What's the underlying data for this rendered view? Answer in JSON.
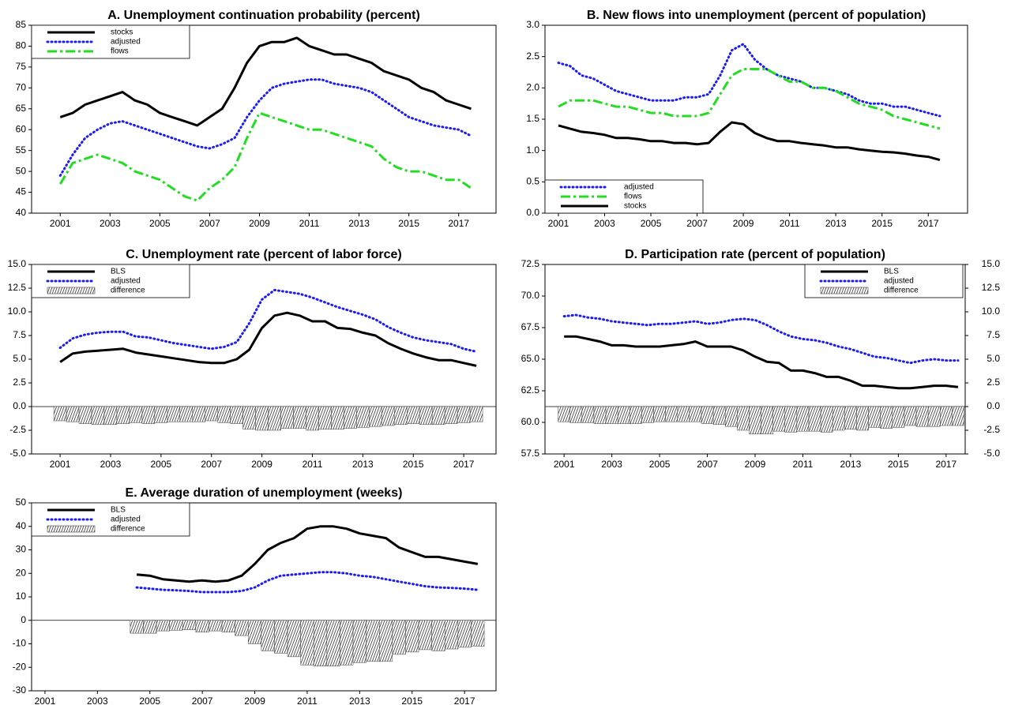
{
  "chart_data": [
    {
      "type": "line",
      "title": "A. Unemployment continuation probability (percent)",
      "x": [
        2001,
        2001.5,
        2002,
        2002.5,
        2003,
        2003.5,
        2004,
        2004.5,
        2005,
        2005.5,
        2006,
        2006.5,
        2007,
        2007.5,
        2008,
        2008.5,
        2009,
        2009.5,
        2010,
        2010.5,
        2011,
        2011.5,
        2012,
        2012.5,
        2013,
        2013.5,
        2014,
        2014.5,
        2015,
        2015.5,
        2016,
        2016.5,
        2017,
        2017.5
      ],
      "xlim": [
        1999.85,
        2018.5
      ],
      "xticks": [
        2001,
        2003,
        2005,
        2007,
        2009,
        2011,
        2013,
        2015,
        2017
      ],
      "ylim": [
        40,
        85
      ],
      "yticks": [
        40,
        45,
        50,
        55,
        60,
        65,
        70,
        75,
        80,
        85
      ],
      "legend": "upper left",
      "series": [
        {
          "name": "stocks",
          "color": "#000000",
          "dash": "solid",
          "values": [
            63,
            64,
            66,
            67,
            68,
            69,
            67,
            66,
            64,
            63,
            62,
            61,
            63,
            65,
            70,
            76,
            80,
            81,
            81,
            82,
            80,
            79,
            78,
            78,
            77,
            76,
            74,
            73,
            72,
            70,
            69,
            67,
            66,
            65
          ]
        },
        {
          "name": "adjusted",
          "color": "#1a1aff",
          "dash": "dot",
          "values": [
            49,
            54,
            58,
            60,
            61.5,
            62,
            61,
            60,
            59,
            58,
            57,
            56,
            55.5,
            56.5,
            58,
            63,
            67,
            70,
            71,
            71.5,
            72,
            72,
            71,
            70.5,
            70,
            69,
            67,
            65,
            63,
            62,
            61,
            60.5,
            60,
            58.5
          ]
        },
        {
          "name": "flows",
          "color": "#22dd22",
          "dash": "dashdot",
          "values": [
            47,
            52,
            53,
            54,
            53,
            52,
            50,
            49,
            48,
            46,
            44,
            43,
            46,
            48,
            51,
            58,
            64,
            63,
            62,
            61,
            60,
            60,
            59,
            58,
            57,
            56,
            53,
            51,
            50,
            50,
            49,
            48,
            48,
            46
          ]
        }
      ]
    },
    {
      "type": "line",
      "title": "B. New flows into unemployment (percent of population)",
      "x": [
        2001,
        2001.5,
        2002,
        2002.5,
        2003,
        2003.5,
        2004,
        2004.5,
        2005,
        2005.5,
        2006,
        2006.5,
        2007,
        2007.5,
        2008,
        2008.5,
        2009,
        2009.5,
        2010,
        2010.5,
        2011,
        2011.5,
        2012,
        2012.5,
        2013,
        2013.5,
        2014,
        2014.5,
        2015,
        2015.5,
        2016,
        2016.5,
        2017,
        2017.5
      ],
      "xlim": [
        2000.42,
        2018.7
      ],
      "xticks": [
        2001,
        2003,
        2005,
        2007,
        2009,
        2011,
        2013,
        2015,
        2017
      ],
      "ylim": [
        0,
        3
      ],
      "yticks": [
        {
          "value": 0,
          "label": "0.0"
        },
        0.5,
        {
          "value": 1,
          "label": "1.0"
        },
        1.5,
        {
          "value": 2,
          "label": "2.0"
        },
        2.5,
        {
          "value": 3,
          "label": "3.0"
        }
      ],
      "legend": "lower left",
      "series": [
        {
          "name": "adjusted",
          "color": "#1a1aff",
          "dash": "dot",
          "values": [
            2.4,
            2.35,
            2.2,
            2.15,
            2.05,
            1.95,
            1.9,
            1.85,
            1.8,
            1.8,
            1.8,
            1.85,
            1.85,
            1.9,
            2.2,
            2.6,
            2.7,
            2.45,
            2.3,
            2.2,
            2.15,
            2.1,
            2.0,
            2.0,
            1.95,
            1.9,
            1.8,
            1.75,
            1.75,
            1.7,
            1.7,
            1.65,
            1.6,
            1.55
          ]
        },
        {
          "name": "flows",
          "color": "#22dd22",
          "dash": "dashdot",
          "values": [
            1.7,
            1.8,
            1.8,
            1.8,
            1.75,
            1.7,
            1.7,
            1.65,
            1.6,
            1.6,
            1.55,
            1.55,
            1.55,
            1.6,
            1.9,
            2.2,
            2.3,
            2.3,
            2.3,
            2.2,
            2.1,
            2.1,
            2.0,
            2.0,
            1.95,
            1.85,
            1.75,
            1.7,
            1.65,
            1.55,
            1.5,
            1.45,
            1.4,
            1.35
          ]
        },
        {
          "name": "stocks",
          "color": "#000000",
          "dash": "solid",
          "values": [
            1.4,
            1.35,
            1.3,
            1.28,
            1.25,
            1.2,
            1.2,
            1.18,
            1.15,
            1.15,
            1.12,
            1.12,
            1.1,
            1.12,
            1.3,
            1.45,
            1.42,
            1.28,
            1.2,
            1.15,
            1.15,
            1.12,
            1.1,
            1.08,
            1.05,
            1.05,
            1.02,
            1.0,
            0.98,
            0.97,
            0.95,
            0.92,
            0.9,
            0.85
          ]
        }
      ]
    },
    {
      "type": "line",
      "title": "C. Unemployment rate (percent of labor force)",
      "x": [
        2001,
        2001.5,
        2002,
        2002.5,
        2003,
        2003.5,
        2004,
        2004.5,
        2005,
        2005.5,
        2006,
        2006.5,
        2007,
        2007.5,
        2008,
        2008.5,
        2009,
        2009.5,
        2010,
        2010.5,
        2011,
        2011.5,
        2012,
        2012.5,
        2013,
        2013.5,
        2014,
        2014.5,
        2015,
        2015.5,
        2016,
        2016.5,
        2017,
        2017.5
      ],
      "xlim": [
        1999.87,
        2018.28
      ],
      "xticks": [
        2001,
        2003,
        2005,
        2007,
        2009,
        2011,
        2013,
        2015,
        2017
      ],
      "ylim": [
        -5,
        15
      ],
      "yticks": [
        {
          "value": -5,
          "label": "-5.0"
        },
        -2.5,
        {
          "value": 0,
          "label": "0.0"
        },
        2.5,
        {
          "value": 5,
          "label": "5.0"
        },
        7.5,
        {
          "value": 10,
          "label": "10.0"
        },
        12.5,
        {
          "value": 15,
          "label": "15.0"
        }
      ],
      "legend": "upper left",
      "series": [
        {
          "name": "BLS",
          "color": "#000000",
          "dash": "solid",
          "values": [
            4.7,
            5.6,
            5.8,
            5.9,
            6.0,
            6.1,
            5.7,
            5.5,
            5.3,
            5.1,
            4.9,
            4.7,
            4.6,
            4.6,
            5.0,
            6.0,
            8.3,
            9.6,
            9.9,
            9.6,
            9.0,
            9.0,
            8.3,
            8.2,
            7.8,
            7.5,
            6.7,
            6.1,
            5.6,
            5.2,
            4.9,
            4.9,
            4.6,
            4.3
          ]
        },
        {
          "name": "adjusted",
          "color": "#1a1aff",
          "dash": "dot",
          "values": [
            6.2,
            7.2,
            7.6,
            7.8,
            7.9,
            7.9,
            7.4,
            7.3,
            7.0,
            6.7,
            6.5,
            6.3,
            6.1,
            6.3,
            6.8,
            8.8,
            11.3,
            12.3,
            12.1,
            11.9,
            11.5,
            11.0,
            10.5,
            10.1,
            9.7,
            9.2,
            8.4,
            7.8,
            7.3,
            7.0,
            6.8,
            6.6,
            6.1,
            5.8
          ]
        },
        {
          "name": "difference",
          "color": "#444444",
          "type": "bar",
          "values": [
            -1.5,
            -1.6,
            -1.8,
            -1.9,
            -1.9,
            -1.8,
            -1.7,
            -1.8,
            -1.7,
            -1.6,
            -1.6,
            -1.6,
            -1.5,
            -1.7,
            -1.8,
            -2.4,
            -2.5,
            -2.5,
            -2.3,
            -2.3,
            -2.5,
            -2.4,
            -2.4,
            -2.3,
            -2.2,
            -2.1,
            -2.0,
            -1.9,
            -1.8,
            -1.9,
            -1.9,
            -1.8,
            -1.7,
            -1.6
          ]
        }
      ]
    },
    {
      "type": "line",
      "title": "D. Participation rate (percent of population)",
      "x": [
        2001,
        2001.5,
        2002,
        2002.5,
        2003,
        2003.5,
        2004,
        2004.5,
        2005,
        2005.5,
        2006,
        2006.5,
        2007,
        2007.5,
        2008,
        2008.5,
        2009,
        2009.5,
        2010,
        2010.5,
        2011,
        2011.5,
        2012,
        2012.5,
        2013,
        2013.5,
        2014,
        2014.5,
        2015,
        2015.5,
        2016,
        2016.5,
        2017,
        2017.5
      ],
      "xlim": [
        2000.2,
        2017.8
      ],
      "xticks": [
        2001,
        2003,
        2005,
        2007,
        2009,
        2011,
        2013,
        2015,
        2017
      ],
      "ylim": [
        57.5,
        72.5
      ],
      "yticks": [
        57.5,
        {
          "value": 60,
          "label": "60.0"
        },
        62.5,
        {
          "value": 65,
          "label": "65.0"
        },
        67.5,
        {
          "value": 70,
          "label": "70.0"
        },
        72.5
      ],
      "y2lim": [
        -5,
        15
      ],
      "y2ticks": [
        {
          "value": -5,
          "label": "-5.0"
        },
        -2.5,
        {
          "value": 0,
          "label": "0.0"
        },
        2.5,
        {
          "value": 5,
          "label": "5.0"
        },
        7.5,
        {
          "value": 10,
          "label": "10.0"
        },
        12.5,
        {
          "value": 15,
          "label": "15.0"
        }
      ],
      "legend": "upper right",
      "series": [
        {
          "name": "BLS",
          "color": "#000000",
          "dash": "solid",
          "values": [
            66.8,
            66.8,
            66.6,
            66.4,
            66.1,
            66.1,
            66.0,
            66.0,
            66.0,
            66.1,
            66.2,
            66.4,
            66.0,
            66.0,
            66.0,
            65.7,
            65.2,
            64.8,
            64.7,
            64.1,
            64.1,
            63.9,
            63.6,
            63.6,
            63.3,
            62.9,
            62.9,
            62.8,
            62.7,
            62.7,
            62.8,
            62.9,
            62.9,
            62.8
          ]
        },
        {
          "name": "adjusted",
          "color": "#1a1aff",
          "dash": "dot",
          "values": [
            68.4,
            68.5,
            68.3,
            68.2,
            68.0,
            67.9,
            67.8,
            67.7,
            67.8,
            67.8,
            67.9,
            68.0,
            67.8,
            67.9,
            68.1,
            68.2,
            68.1,
            67.7,
            67.2,
            66.8,
            66.6,
            66.5,
            66.3,
            66.0,
            65.8,
            65.5,
            65.2,
            65.1,
            64.9,
            64.7,
            64.9,
            65.0,
            64.9,
            64.9
          ]
        },
        {
          "name": "difference",
          "color": "#444444",
          "type": "bar",
          "axis": "y2",
          "values": [
            -1.6,
            -1.7,
            -1.7,
            -1.8,
            -1.8,
            -1.8,
            -1.8,
            -1.7,
            -1.6,
            -1.6,
            -1.6,
            -1.6,
            -1.8,
            -1.9,
            -2.1,
            -2.5,
            -2.9,
            -2.9,
            -2.6,
            -2.7,
            -2.6,
            -2.6,
            -2.7,
            -2.5,
            -2.4,
            -2.5,
            -2.2,
            -2.3,
            -2.2,
            -2.0,
            -2.1,
            -2.1,
            -2.0,
            -2.0
          ]
        }
      ]
    },
    {
      "type": "line",
      "title": "E. Average duration of unemployment (weeks)",
      "x": [
        2001,
        2001.5,
        2002,
        2002.5,
        2003,
        2003.5,
        2004,
        2004.5,
        2005,
        2005.5,
        2006,
        2006.5,
        2007,
        2007.5,
        2008,
        2008.5,
        2009,
        2009.5,
        2010,
        2010.5,
        2011,
        2011.5,
        2012,
        2012.5,
        2013,
        2013.5,
        2014,
        2014.5,
        2015,
        2015.5,
        2016,
        2016.5,
        2017,
        2017.5
      ],
      "xlim": [
        2000.49,
        2018.2
      ],
      "xticks": [
        2001,
        2003,
        2005,
        2007,
        2009,
        2011,
        2013,
        2015,
        2017
      ],
      "ylim": [
        -30,
        50
      ],
      "yticks": [
        -30,
        -20,
        -10,
        0,
        10,
        20,
        30,
        40,
        50
      ],
      "legend": "upper left",
      "series": [
        {
          "name": "BLS",
          "color": "#000000",
          "dash": "solid",
          "values": [
            null,
            null,
            null,
            null,
            null,
            null,
            null,
            19.5,
            19,
            17.5,
            17,
            16.5,
            17,
            16.5,
            17,
            19,
            24,
            30,
            33,
            35,
            39,
            40,
            40,
            39,
            37,
            36,
            35,
            31,
            29,
            27,
            27,
            26,
            25,
            24
          ]
        },
        {
          "name": "adjusted",
          "color": "#1a1aff",
          "dash": "dot",
          "values": [
            null,
            null,
            null,
            null,
            null,
            null,
            null,
            14,
            13.5,
            13,
            12.8,
            12.5,
            12,
            12,
            12,
            12.5,
            14,
            17,
            19,
            19.5,
            20,
            20.5,
            20.5,
            20,
            19,
            18.5,
            17.5,
            16.5,
            15.5,
            14.5,
            14,
            13.8,
            13.5,
            13
          ]
        },
        {
          "name": "difference",
          "color": "#444444",
          "type": "bar",
          "values": [
            null,
            null,
            null,
            null,
            null,
            null,
            null,
            -5.5,
            -5.5,
            -4.5,
            -4.2,
            -4,
            -5,
            -4.5,
            -5,
            -6.5,
            -10,
            -13,
            -14,
            -15.5,
            -19,
            -19.5,
            -19.5,
            -19,
            -18,
            -17.5,
            -17.5,
            -14.5,
            -13.5,
            -12.5,
            -13,
            -12.2,
            -11.5,
            -11
          ]
        }
      ]
    }
  ]
}
